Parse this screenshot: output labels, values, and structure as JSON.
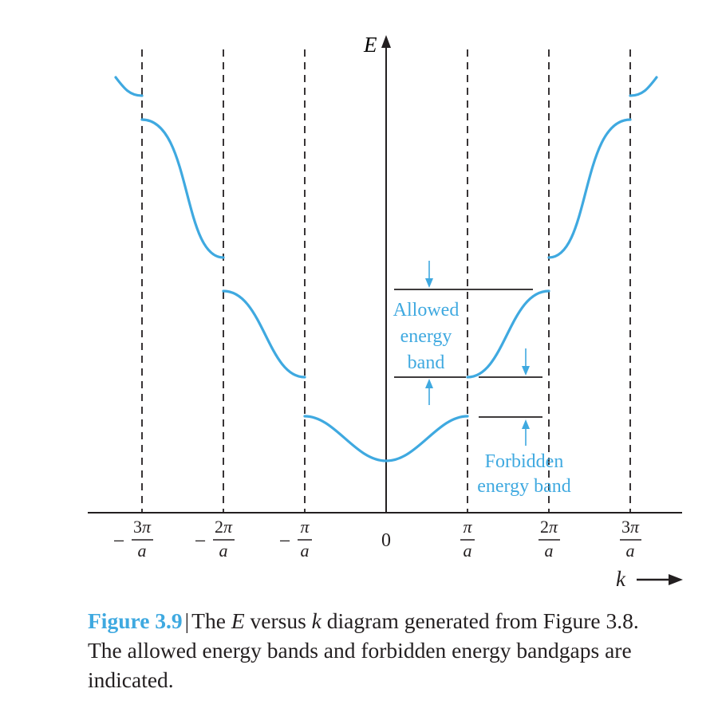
{
  "figure": {
    "axes": {
      "y_label": "E",
      "x_label": "k",
      "origin_label": "0",
      "pi_symbol": "π",
      "denominator": "a",
      "minus": "−",
      "ticks": [
        {
          "id": "m3",
          "numerator": "3",
          "negative": true
        },
        {
          "id": "m2",
          "numerator": "2",
          "negative": true
        },
        {
          "id": "m1",
          "numerator": "",
          "negative": true
        },
        {
          "id": "p1",
          "numerator": "",
          "negative": false
        },
        {
          "id": "p2",
          "numerator": "2",
          "negative": false
        },
        {
          "id": "p3",
          "numerator": "3",
          "negative": false
        }
      ]
    },
    "annotations": {
      "allowed": [
        "Allowed",
        "energy",
        "band"
      ],
      "forbidden": [
        "Forbidden",
        "energy band"
      ]
    },
    "colors": {
      "curve": "#3fa9e0",
      "axis": "#231f20"
    }
  },
  "caption": {
    "figure_label": "Figure 3.9",
    "separator": "|",
    "text_1": "The ",
    "e_var": "E",
    "text_2": " versus ",
    "k_var": "k",
    "text_3": " diagram generated from Figure 3.8. The allowed energy bands and forbidden energy bandgaps are indicated."
  }
}
